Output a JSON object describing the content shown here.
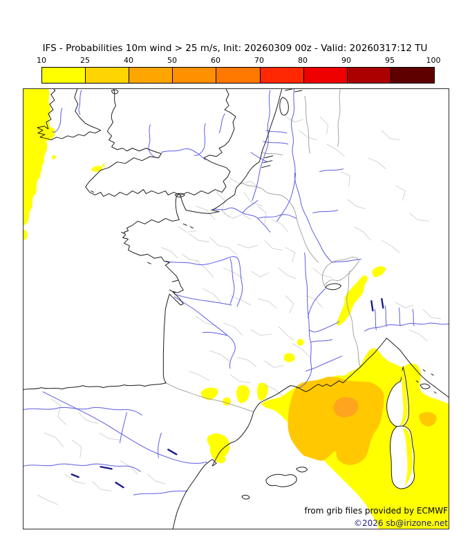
{
  "title": "IFS - Probabilities 10m wind > 25 m/s, Init: 20260309 00z - Valid: 20260317:12 TU",
  "colorbar": {
    "tick_labels": [
      "10",
      "25",
      "40",
      "50",
      "60",
      "70",
      "80",
      "90",
      "95",
      "100"
    ],
    "segment_colors": [
      "#ffff00",
      "#ffd400",
      "#ffa500",
      "#ff9000",
      "#ff7800",
      "#ff2800",
      "#ee0000",
      "#aa0000",
      "#5e0000"
    ]
  },
  "map": {
    "attribution_line1": "from grib files provided by ECMWF",
    "attribution_line2": "©2026 sb@irizone.net",
    "colors": {
      "prob_ge_10": "#ffff00",
      "prob_ge_25": "#ffc800",
      "prob_ge_40": "#ffa41e",
      "river": "#5a5ae6",
      "reservoir": "#1a1a8c",
      "coastline": "#1a1a1a",
      "admin_boundary": "#c8c8c8",
      "country_border": "#9a9a9a"
    }
  }
}
